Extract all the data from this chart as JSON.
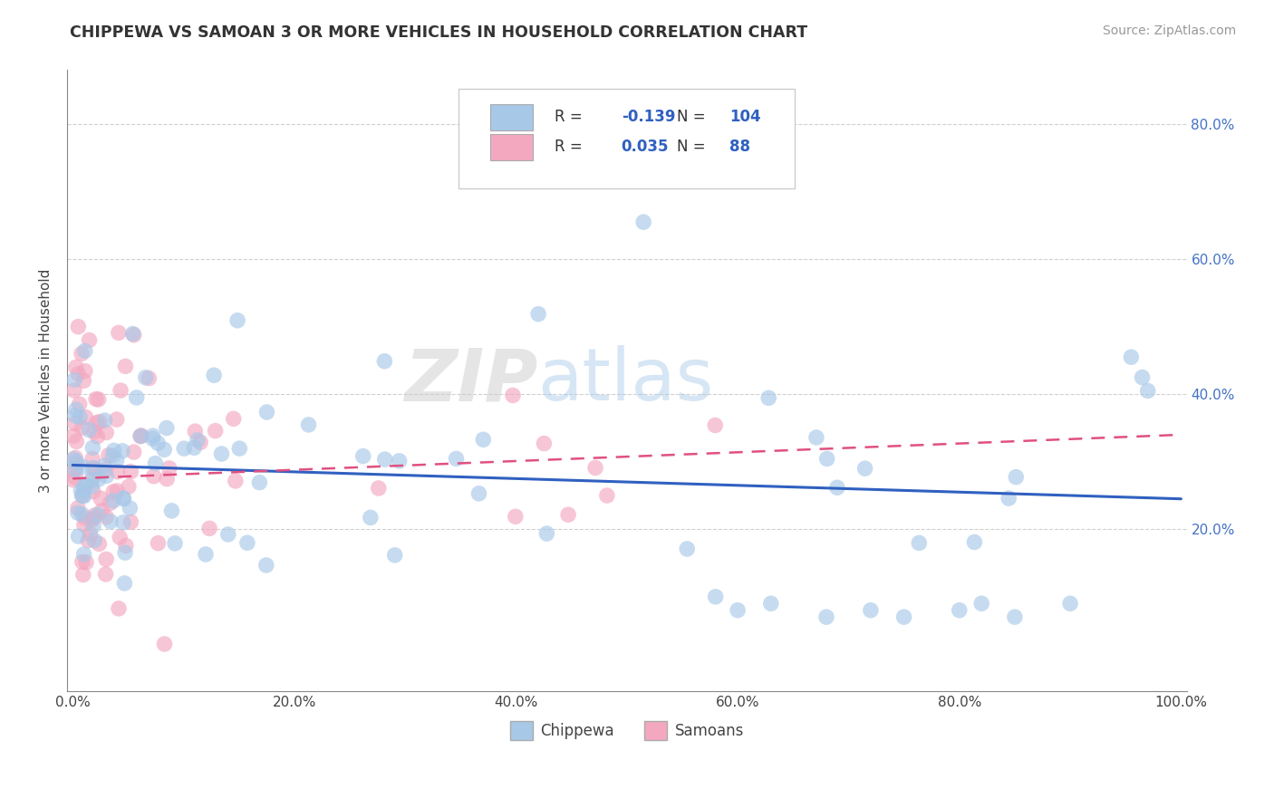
{
  "title": "CHIPPEWA VS SAMOAN 3 OR MORE VEHICLES IN HOUSEHOLD CORRELATION CHART",
  "source": "Source: ZipAtlas.com",
  "ylabel": "3 or more Vehicles in Household",
  "chippewa_R": -0.139,
  "chippewa_N": 104,
  "samoan_R": 0.035,
  "samoan_N": 88,
  "chippewa_color": "#a8c8e8",
  "samoan_color": "#f4a8c0",
  "chippewa_line_color": "#3060c0",
  "samoan_line_color": "#e05080",
  "watermark_zip": "ZIP",
  "watermark_atlas": "atlas",
  "xlim": [
    0.0,
    1.0
  ],
  "ylim": [
    0.0,
    0.85
  ],
  "legend_items": [
    "Chippewa",
    "Samoans"
  ],
  "xtick_vals": [
    0.0,
    0.2,
    0.4,
    0.6,
    0.8,
    1.0
  ],
  "xtick_labels": [
    "0.0%",
    "20.0%",
    "40.0%",
    "60.0%",
    "80.0%",
    "100.0%"
  ],
  "ytick_vals": [
    0.2,
    0.4,
    0.6,
    0.8
  ],
  "ytick_labels": [
    "20.0%",
    "40.0%",
    "60.0%",
    "80.0%"
  ],
  "ytick_color": "#4472c4",
  "background_color": "#ffffff",
  "grid_color": "#d0d0d0",
  "chip_trend_start": 0.295,
  "chip_trend_end": 0.245,
  "samo_trend_start": 0.275,
  "samo_trend_end": 0.34
}
